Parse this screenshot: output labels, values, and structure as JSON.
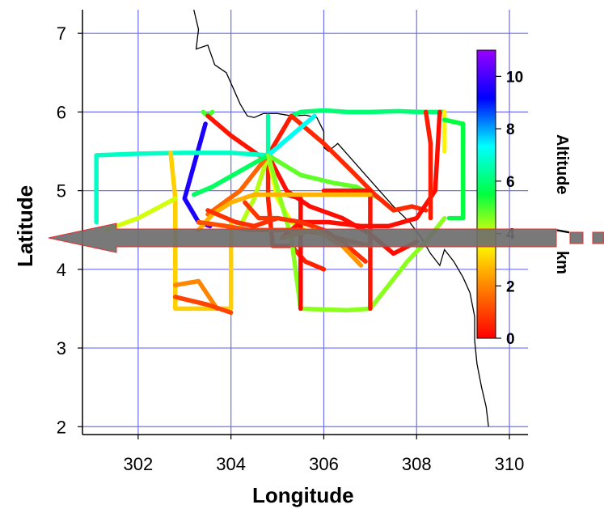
{
  "chart_data": {
    "type": "line",
    "xlabel": "Longitude",
    "ylabel": "Latitude",
    "xlim": [
      300.8,
      310.4
    ],
    "ylim": [
      1.9,
      7.3
    ],
    "xticks": [
      "302",
      "304",
      "306",
      "308",
      "310"
    ],
    "xtick_values": [
      302,
      304,
      306,
      308,
      310
    ],
    "yticks": [
      "2",
      "3",
      "4",
      "5",
      "6",
      "7"
    ],
    "ytick_values": [
      2,
      3,
      4,
      5,
      6,
      7
    ],
    "grid": true,
    "colors": {
      "grid": "#6f6ff0",
      "coastline": "#000000",
      "arrow_fill": "#6e6e6e",
      "arrow_edge": "#e03030"
    },
    "colorbar": {
      "label_main": "Altitude",
      "label_sep": "/",
      "label_unit": "km",
      "ticks": [
        "10",
        "8",
        "6",
        "4",
        "2",
        "0"
      ],
      "tick_values": [
        10,
        8,
        6,
        4,
        2,
        0
      ],
      "range": [
        0,
        11
      ],
      "colors": [
        "#ff0000",
        "#ff7a00",
        "#ffff00",
        "#00ff40",
        "#00ffff",
        "#0000ff",
        "#9900ff"
      ]
    },
    "coastline": [
      [
        303.2,
        7.3
      ],
      [
        303.3,
        7.05
      ],
      [
        303.25,
        6.8
      ],
      [
        303.5,
        6.85
      ],
      [
        303.65,
        6.6
      ],
      [
        303.9,
        6.5
      ],
      [
        304.05,
        6.3
      ],
      [
        304.2,
        6.1
      ],
      [
        304.35,
        5.95
      ],
      [
        304.5,
        5.93
      ],
      [
        304.7,
        5.98
      ],
      [
        305.0,
        5.98
      ],
      [
        305.3,
        5.95
      ],
      [
        305.6,
        5.96
      ],
      [
        305.85,
        5.93
      ],
      [
        306.0,
        5.75
      ],
      [
        306.0,
        5.55
      ],
      [
        306.1,
        5.5
      ],
      [
        306.3,
        5.6
      ],
      [
        306.6,
        5.4
      ],
      [
        306.9,
        5.2
      ],
      [
        307.2,
        5.0
      ],
      [
        307.5,
        4.8
      ],
      [
        307.85,
        4.6
      ],
      [
        308.1,
        4.4
      ],
      [
        308.3,
        4.2
      ],
      [
        308.5,
        4.05
      ],
      [
        308.6,
        4.25
      ],
      [
        308.8,
        4.1
      ],
      [
        309.0,
        3.9
      ],
      [
        309.15,
        3.7
      ],
      [
        309.25,
        3.4
      ],
      [
        309.25,
        3.1
      ],
      [
        309.3,
        2.8
      ],
      [
        309.4,
        2.5
      ],
      [
        309.5,
        2.25
      ],
      [
        309.55,
        2.0
      ]
    ],
    "flight_segments": [
      {
        "alt": 5,
        "points": [
          [
            303.4,
            6.0
          ],
          [
            303.5,
            5.95
          ],
          [
            303.6,
            6.0
          ]
        ]
      },
      {
        "alt": 9.5,
        "points": [
          [
            303.45,
            5.85
          ],
          [
            303.0,
            4.9
          ],
          [
            303.3,
            4.6
          ]
        ]
      },
      {
        "alt": 10,
        "points": [
          [
            303.3,
            4.6
          ],
          [
            303.55,
            4.55
          ]
        ]
      },
      {
        "alt": 0.3,
        "points": [
          [
            303.5,
            5.95
          ],
          [
            304.0,
            5.7
          ],
          [
            304.6,
            5.45
          ],
          [
            304.8,
            5.45
          ]
        ]
      },
      {
        "alt": 0.4,
        "points": [
          [
            304.8,
            5.45
          ],
          [
            305.3,
            5.95
          ]
        ]
      },
      {
        "alt": 6,
        "points": [
          [
            305.3,
            5.95
          ],
          [
            305.5,
            6.0
          ],
          [
            306.0,
            6.02
          ],
          [
            306.5,
            6.0
          ],
          [
            307.0,
            6.0
          ],
          [
            307.6,
            6.01
          ],
          [
            308.1,
            6.0
          ],
          [
            308.6,
            6.0
          ]
        ]
      },
      {
        "alt": 3.5,
        "points": [
          [
            308.6,
            6.0
          ],
          [
            308.6,
            5.5
          ]
        ]
      },
      {
        "alt": 5.5,
        "points": [
          [
            308.6,
            5.9
          ],
          [
            309.0,
            5.85
          ],
          [
            309.0,
            4.65
          ],
          [
            308.7,
            4.65
          ]
        ]
      },
      {
        "alt": 6.8,
        "points": [
          [
            301.1,
            4.6
          ],
          [
            301.1,
            5.45
          ],
          [
            302.0,
            5.47
          ],
          [
            303.0,
            5.48
          ],
          [
            304.0,
            5.48
          ],
          [
            304.8,
            5.45
          ]
        ]
      },
      {
        "alt": 3,
        "points": [
          [
            302.7,
            5.48
          ],
          [
            302.8,
            4.9
          ],
          [
            302.8,
            3.5
          ],
          [
            303.2,
            3.5
          ],
          [
            304.0,
            3.5
          ],
          [
            304.0,
            4.6
          ]
        ]
      },
      {
        "alt": 4,
        "points": [
          [
            302.8,
            4.9
          ],
          [
            302.0,
            4.65
          ],
          [
            301.3,
            4.5
          ]
        ]
      },
      {
        "alt": 2,
        "points": [
          [
            302.8,
            3.8
          ],
          [
            303.3,
            3.85
          ],
          [
            303.7,
            3.5
          ]
        ]
      },
      {
        "alt": 1,
        "points": [
          [
            302.8,
            3.65
          ],
          [
            303.5,
            3.55
          ],
          [
            304.0,
            3.45
          ]
        ]
      },
      {
        "alt": 0.2,
        "points": [
          [
            304.8,
            5.45
          ],
          [
            305.2,
            5.0
          ],
          [
            305.7,
            4.8
          ],
          [
            306.4,
            4.65
          ],
          [
            307.0,
            4.45
          ],
          [
            307.5,
            4.2
          ],
          [
            308.0,
            4.35
          ]
        ]
      },
      {
        "alt": 0.5,
        "points": [
          [
            304.8,
            5.45
          ],
          [
            304.8,
            4.9
          ],
          [
            304.9,
            4.3
          ],
          [
            305.3,
            4.3
          ],
          [
            305.6,
            4.1
          ],
          [
            306.0,
            4.0
          ]
        ]
      },
      {
        "alt": 4.2,
        "points": [
          [
            304.8,
            5.45
          ],
          [
            304.5,
            4.9
          ],
          [
            304.2,
            4.55
          ]
        ]
      },
      {
        "alt": 3.8,
        "points": [
          [
            304.8,
            5.45
          ],
          [
            305.0,
            4.9
          ],
          [
            305.3,
            4.6
          ],
          [
            305.6,
            4.5
          ]
        ]
      },
      {
        "alt": 4.8,
        "points": [
          [
            304.8,
            5.45
          ],
          [
            305.5,
            5.2
          ],
          [
            306.2,
            5.1
          ],
          [
            306.7,
            5.05
          ],
          [
            307.2,
            4.9
          ],
          [
            307.5,
            4.75
          ]
        ]
      },
      {
        "alt": 0.6,
        "points": [
          [
            305.3,
            5.95
          ],
          [
            306.0,
            5.6
          ],
          [
            306.6,
            5.25
          ],
          [
            307.1,
            4.95
          ],
          [
            307.5,
            4.75
          ],
          [
            307.9,
            4.8
          ],
          [
            308.2,
            4.75
          ]
        ]
      },
      {
        "alt": 1.5,
        "points": [
          [
            304.8,
            5.45
          ],
          [
            304.2,
            5.0
          ],
          [
            303.5,
            4.7
          ]
        ]
      },
      {
        "alt": 5.8,
        "points": [
          [
            304.8,
            5.45
          ],
          [
            304.2,
            5.25
          ],
          [
            303.6,
            5.05
          ],
          [
            303.2,
            4.95
          ]
        ]
      },
      {
        "alt": 6.5,
        "points": [
          [
            304.8,
            5.45
          ],
          [
            304.8,
            5.95
          ]
        ]
      },
      {
        "alt": 7.2,
        "points": [
          [
            304.8,
            5.45
          ],
          [
            305.8,
            5.95
          ]
        ]
      },
      {
        "alt": 4.5,
        "points": [
          [
            304.8,
            5.45
          ],
          [
            305.3,
            4.4
          ],
          [
            305.5,
            3.5
          ],
          [
            306.5,
            3.48
          ],
          [
            307.0,
            3.5
          ],
          [
            307.4,
            3.8
          ],
          [
            307.8,
            4.1
          ],
          [
            308.2,
            4.35
          ],
          [
            308.6,
            4.65
          ]
        ]
      },
      {
        "alt": 0.1,
        "points": [
          [
            305.5,
            3.5
          ],
          [
            305.5,
            4.9
          ],
          [
            305.2,
            4.95
          ]
        ]
      },
      {
        "alt": 0.3,
        "points": [
          [
            307.0,
            3.5
          ],
          [
            307.0,
            5.0
          ],
          [
            306.0,
            5.0
          ]
        ]
      },
      {
        "alt": 0.2,
        "points": [
          [
            308.5,
            6.0
          ],
          [
            308.4,
            5.0
          ],
          [
            308.0,
            4.65
          ],
          [
            307.4,
            4.55
          ],
          [
            306.8,
            4.55
          ],
          [
            306.1,
            4.6
          ],
          [
            305.5,
            4.6
          ],
          [
            305.1,
            4.4
          ]
        ]
      },
      {
        "alt": 0.4,
        "points": [
          [
            308.2,
            6.0
          ],
          [
            308.3,
            5.6
          ],
          [
            308.3,
            4.65
          ]
        ]
      },
      {
        "alt": 2.6,
        "points": [
          [
            303.3,
            4.5
          ],
          [
            303.6,
            4.7
          ],
          [
            304.0,
            4.85
          ],
          [
            304.5,
            4.95
          ],
          [
            305.0,
            4.95
          ],
          [
            305.5,
            4.95
          ],
          [
            306.0,
            4.95
          ],
          [
            306.6,
            4.95
          ],
          [
            307.0,
            4.95
          ]
        ]
      },
      {
        "alt": 1.2,
        "points": [
          [
            303.3,
            4.6
          ],
          [
            303.9,
            4.55
          ],
          [
            304.4,
            4.5
          ],
          [
            305.0,
            4.5
          ],
          [
            305.5,
            4.5
          ],
          [
            306.0,
            4.45
          ],
          [
            306.6,
            4.35
          ],
          [
            307.0,
            4.3
          ]
        ]
      },
      {
        "alt": 0.7,
        "points": [
          [
            303.5,
            4.75
          ],
          [
            304.1,
            4.6
          ],
          [
            304.5,
            4.55
          ],
          [
            305.0,
            4.65
          ],
          [
            305.5,
            4.6
          ],
          [
            306.0,
            4.5
          ],
          [
            306.5,
            4.3
          ],
          [
            306.9,
            4.1
          ]
        ]
      },
      {
        "alt": 2.2,
        "points": [
          [
            305.1,
            4.4
          ],
          [
            305.8,
            4.5
          ],
          [
            306.4,
            4.3
          ],
          [
            306.8,
            4.05
          ]
        ]
      },
      {
        "alt": 0.8,
        "points": [
          [
            304.3,
            4.85
          ],
          [
            304.6,
            4.65
          ],
          [
            305.0,
            4.65
          ]
        ]
      }
    ]
  }
}
